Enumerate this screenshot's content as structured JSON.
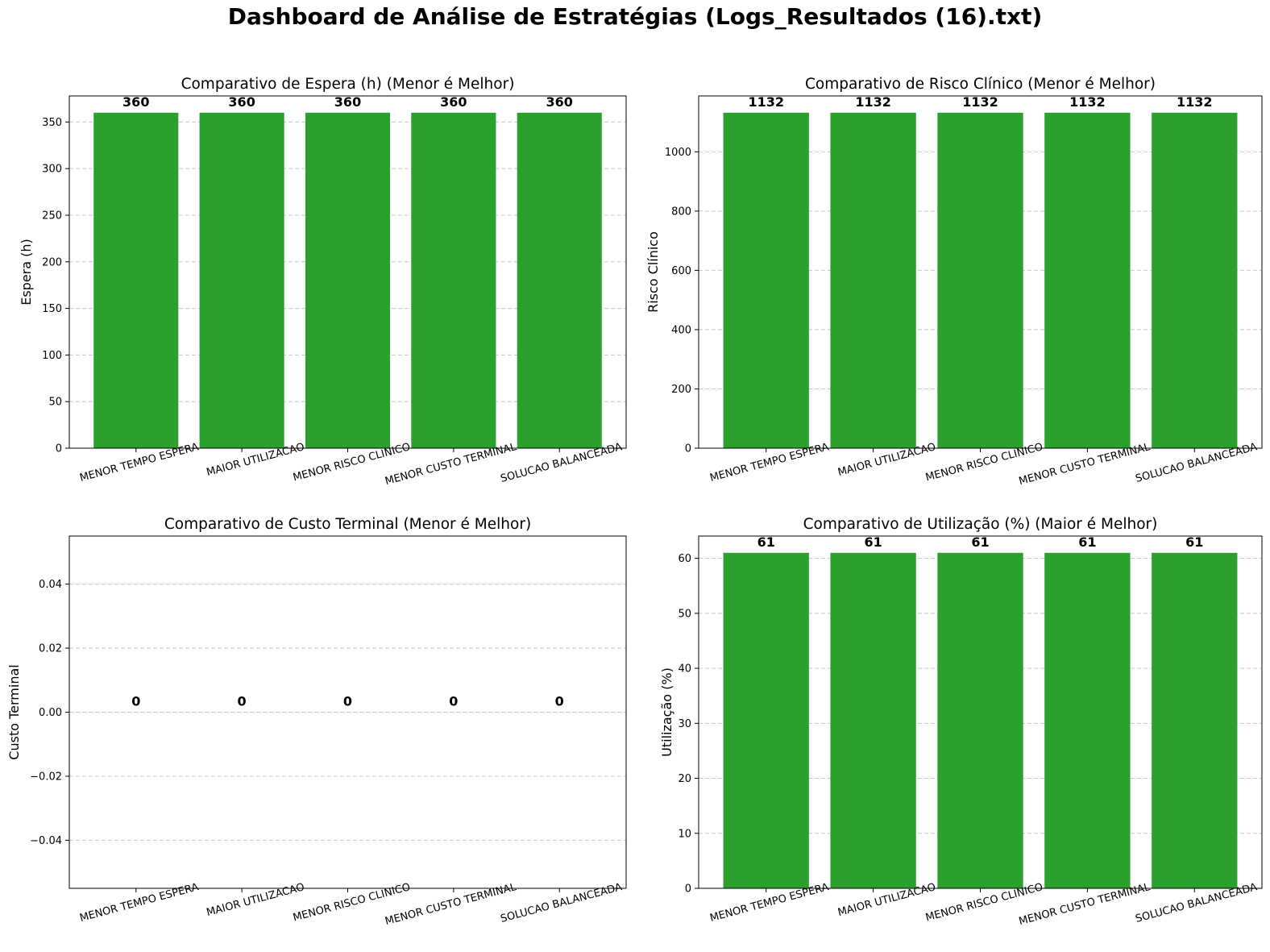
{
  "figure_title": "Dashboard de Análise de Estratégias (Logs_Resultados (16).txt)",
  "colors": {
    "bar": "#2ca02c",
    "grid": "#c8c8c8",
    "axis": "#000000"
  },
  "chart_data": [
    {
      "type": "bar",
      "title": "Comparativo de Espera (h) (Menor é Melhor)",
      "ylabel": "Espera (h)",
      "xlabel": "",
      "categories": [
        "MENOR TEMPO ESPERA",
        "MAIOR UTILIZACAO",
        "MENOR RISCO CLINICO",
        "MENOR CUSTO TERMINAL",
        "SOLUCAO BALANCEADA"
      ],
      "values": [
        360,
        360,
        360,
        360,
        360
      ],
      "data_labels": [
        "360",
        "360",
        "360",
        "360",
        "360"
      ],
      "ylim": [
        0,
        378
      ],
      "yticks": [
        0,
        50,
        100,
        150,
        200,
        250,
        300,
        350
      ],
      "ytick_labels": [
        "0",
        "50",
        "100",
        "150",
        "200",
        "250",
        "300",
        "350"
      ],
      "grid": "y-dashed"
    },
    {
      "type": "bar",
      "title": "Comparativo de Risco Clínico (Menor é Melhor)",
      "ylabel": "Risco Clínico",
      "xlabel": "",
      "categories": [
        "MENOR TEMPO ESPERA",
        "MAIOR UTILIZACAO",
        "MENOR RISCO CLINICO",
        "MENOR CUSTO TERMINAL",
        "SOLUCAO BALANCEADA"
      ],
      "values": [
        1132,
        1132,
        1132,
        1132,
        1132
      ],
      "data_labels": [
        "1132",
        "1132",
        "1132",
        "1132",
        "1132"
      ],
      "ylim": [
        0,
        1188.6
      ],
      "yticks": [
        0,
        200,
        400,
        600,
        800,
        1000
      ],
      "ytick_labels": [
        "0",
        "200",
        "400",
        "600",
        "800",
        "1000"
      ],
      "grid": "y-dashed"
    },
    {
      "type": "bar",
      "title": "Comparativo de Custo Terminal (Menor é Melhor)",
      "ylabel": "Custo Terminal",
      "xlabel": "",
      "categories": [
        "MENOR TEMPO ESPERA",
        "MAIOR UTILIZACAO",
        "MENOR RISCO CLINICO",
        "MENOR CUSTO TERMINAL",
        "SOLUCAO BALANCEADA"
      ],
      "values": [
        0,
        0,
        0,
        0,
        0
      ],
      "data_labels": [
        "0",
        "0",
        "0",
        "0",
        "0"
      ],
      "ylim": [
        -0.055,
        0.055
      ],
      "yticks": [
        -0.04,
        -0.02,
        0.0,
        0.02,
        0.04
      ],
      "ytick_labels": [
        "−0.04",
        "−0.02",
        "0.00",
        "0.02",
        "0.04"
      ],
      "grid": "y-dashed"
    },
    {
      "type": "bar",
      "title": "Comparativo de Utilização (%) (Maior é Melhor)",
      "ylabel": "Utilização (%)",
      "xlabel": "",
      "categories": [
        "MENOR TEMPO ESPERA",
        "MAIOR UTILIZACAO",
        "MENOR RISCO CLINICO",
        "MENOR CUSTO TERMINAL",
        "SOLUCAO BALANCEADA"
      ],
      "values": [
        61,
        61,
        61,
        61,
        61
      ],
      "data_labels": [
        "61",
        "61",
        "61",
        "61",
        "61"
      ],
      "ylim": [
        0,
        64.05
      ],
      "yticks": [
        0,
        10,
        20,
        30,
        40,
        50,
        60
      ],
      "ytick_labels": [
        "0",
        "10",
        "20",
        "30",
        "40",
        "50",
        "60"
      ],
      "grid": "y-dashed"
    }
  ]
}
